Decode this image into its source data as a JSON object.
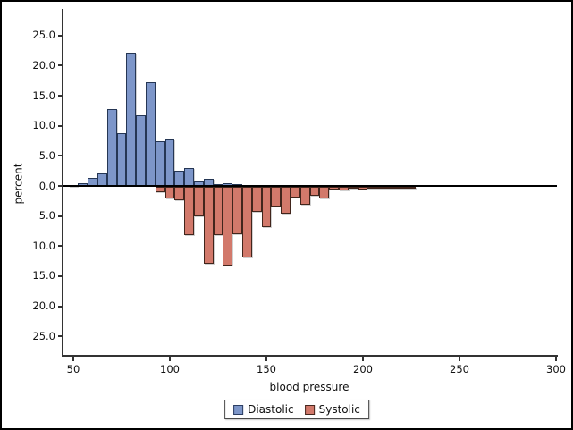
{
  "figure": {
    "background": "#ffffff",
    "border_color": "#000000"
  },
  "axis": {
    "xlabel": "blood pressure",
    "ylabel": "percent",
    "x_tick_values": [
      50,
      100,
      150,
      200,
      250,
      300
    ],
    "x_tick_labels": [
      "50",
      "100",
      "150",
      "200",
      "250",
      "300"
    ],
    "y_tick_values": [
      25,
      20,
      15,
      10,
      5,
      0,
      -5,
      -10,
      -15,
      -20,
      -25
    ],
    "y_tick_labels": [
      "25.0",
      "20.0",
      "15.0",
      "10.0",
      "5.0",
      "0.0",
      "5.0",
      "10.0",
      "15.0",
      "20.0",
      "25.0"
    ]
  },
  "legend": {
    "items": [
      {
        "label": "Diastolic",
        "color": "#7d96c9",
        "border": "#2c3e63"
      },
      {
        "label": "Systolic",
        "color": "#d2796b",
        "border": "#46281f"
      }
    ]
  },
  "chart_data": {
    "type": "bar",
    "variant": "back-to-back-histogram",
    "title": "",
    "xlabel": "blood pressure",
    "ylabel": "percent",
    "xlim": [
      44,
      302
    ],
    "ylim_percent": [
      -29,
      29
    ],
    "bin_width": 5,
    "grid": false,
    "legend_position": "bottom-center",
    "series": [
      {
        "name": "Diastolic",
        "direction": "up",
        "color": "#7d96c9",
        "border": "#253654",
        "midpoints": [
          50,
          55,
          60,
          65,
          70,
          75,
          80,
          85,
          90,
          95,
          100,
          105,
          110,
          115,
          120,
          125,
          130,
          135,
          140,
          145,
          150,
          155
        ],
        "percents": [
          0.2,
          0.4,
          1.4,
          2.1,
          12.8,
          8.8,
          22.2,
          11.8,
          17.3,
          7.4,
          7.8,
          2.5,
          3.0,
          0.7,
          1.2,
          0.35,
          0.5,
          0.25,
          0.15,
          0.15,
          0.1,
          0.1
        ]
      },
      {
        "name": "Systolic",
        "direction": "down",
        "color": "#d2796b",
        "border": "#41251c",
        "midpoints": [
          95,
          100,
          105,
          110,
          115,
          120,
          125,
          130,
          135,
          140,
          145,
          150,
          155,
          160,
          165,
          170,
          175,
          180,
          185,
          190,
          195,
          200,
          205,
          210,
          215,
          220,
          225
        ],
        "percents": [
          0.9,
          1.9,
          2.2,
          8.0,
          4.9,
          12.8,
          8.0,
          13.1,
          7.9,
          11.8,
          4.2,
          6.7,
          3.2,
          4.5,
          1.8,
          3.0,
          1.5,
          1.9,
          0.5,
          0.6,
          0.3,
          0.4,
          0.15,
          0.2,
          0.1,
          0.05,
          0.1
        ]
      }
    ]
  }
}
